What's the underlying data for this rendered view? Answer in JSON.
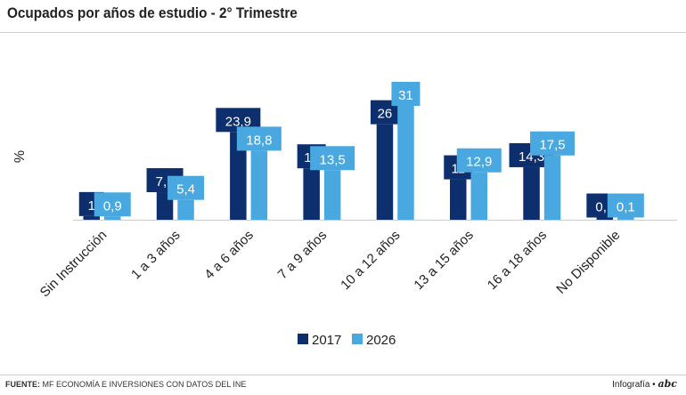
{
  "header": {
    "title": "Ocupados por años de estudio - 2° Trimestre"
  },
  "footer": {
    "source_label": "FUENTE:",
    "source_text": "MF ECONOMÍA E INVERSIONES CON DATOS DEL INE",
    "credit_label": "Infografía",
    "credit_separator": "•",
    "credit_brand": "abc"
  },
  "chart_data": {
    "type": "bar",
    "ylabel": "%",
    "ylim": [
      0,
      31
    ],
    "grid": false,
    "legend_position": "bottom-center",
    "categories": [
      "Sin Instrucción",
      "1 a 3 años",
      "4 a 6 años",
      "7 a 9 años",
      "10 a 12 años",
      "13 a 15 años",
      "16 a 18 años",
      "No Disponible"
    ],
    "series": [
      {
        "name": "2017",
        "color": "#0d2f6e",
        "values": [
          1,
          7.5,
          23.9,
          14,
          26,
          11,
          14.3,
          0.1
        ],
        "labels": [
          "1",
          "7,5",
          "23,9",
          "14",
          "26",
          "11",
          "14,3",
          "0,1"
        ]
      },
      {
        "name": "2026",
        "color": "#4aa8e0",
        "values": [
          0.9,
          5.4,
          18.8,
          13.5,
          31,
          12.9,
          17.5,
          0.1
        ],
        "labels": [
          "0,9",
          "5,4",
          "18,8",
          "13,5",
          "31",
          "12,9",
          "17,5",
          "0,1"
        ]
      }
    ]
  }
}
